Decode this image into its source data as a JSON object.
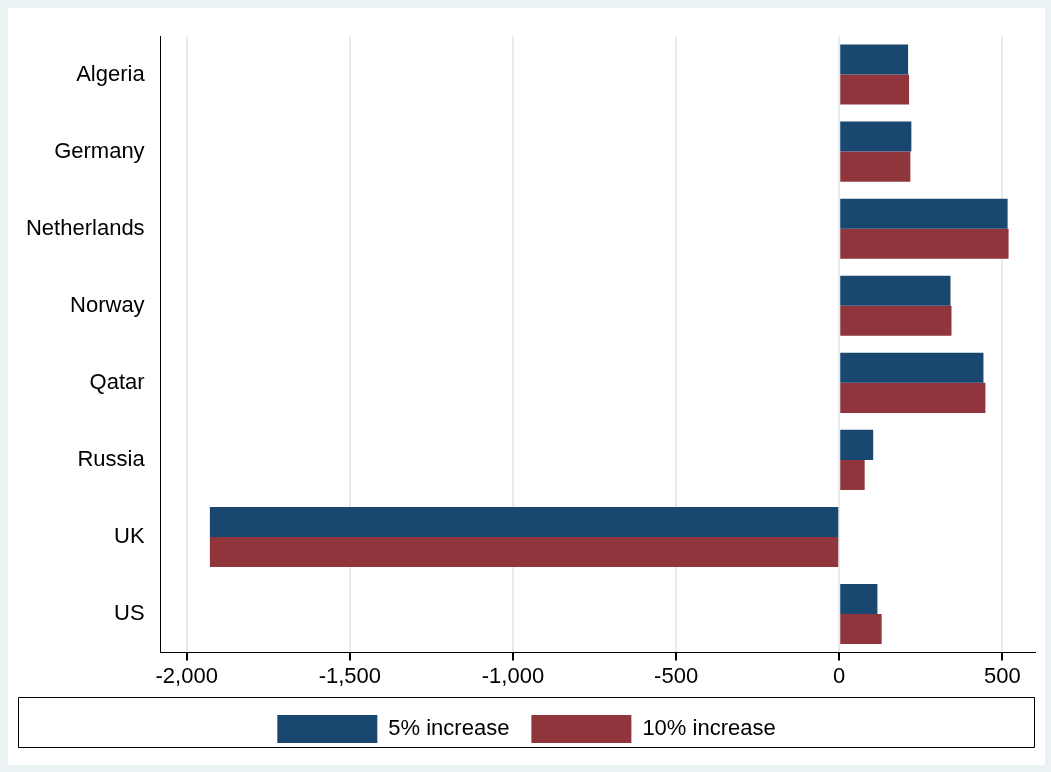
{
  "chart_data": {
    "type": "bar",
    "orientation": "horizontal",
    "categories": [
      "Algeria",
      "Germany",
      "Netherlands",
      "Norway",
      "Qatar",
      "Russia",
      "UK",
      "US"
    ],
    "series": [
      {
        "name": "5% increase",
        "color": "#1a476f",
        "values": [
          211,
          221,
          516,
          341,
          442,
          104,
          -1929,
          117
        ]
      },
      {
        "name": "10% increase",
        "color": "#90353b",
        "values": [
          214,
          218,
          519,
          344,
          448,
          78,
          -1929,
          130
        ]
      }
    ],
    "xlim": [
      -2080,
      600
    ],
    "xticks": [
      {
        "value": -2000,
        "label": "-2,000"
      },
      {
        "value": -1500,
        "label": "-1,500"
      },
      {
        "value": -1000,
        "label": "-1,000"
      },
      -500,
      0,
      500
    ],
    "grid": "x",
    "legend": "bottom"
  }
}
